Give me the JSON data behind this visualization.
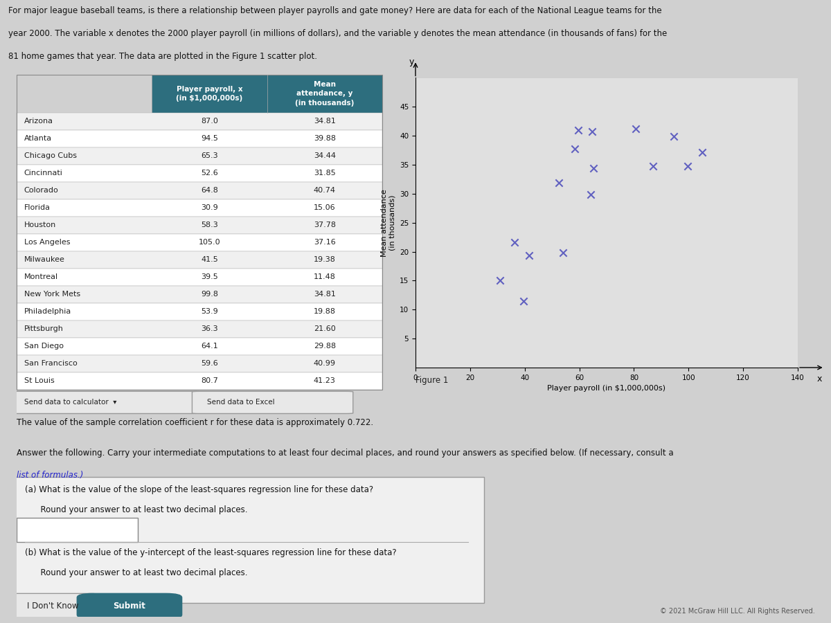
{
  "intro_line1": "For major league baseball teams, is there a relationship between player payrolls and gate money? Here are data for each of the National League teams for the",
  "intro_line2": "year 2000. The variable x denotes the 2000 player payroll (in millions of dollars), and the variable y denotes the mean attendance (in thousands of fans) for the",
  "intro_line3": "81 home games that year. The data are plotted in the Figure 1 scatter plot.",
  "teams": [
    "Arizona",
    "Atlanta",
    "Chicago Cubs",
    "Cincinnati",
    "Colorado",
    "Florida",
    "Houston",
    "Los Angeles",
    "Milwaukee",
    "Montreal",
    "New York Mets",
    "Philadelphia",
    "Pittsburgh",
    "San Diego",
    "San Francisco",
    "St Louis"
  ],
  "payroll": [
    87.0,
    94.5,
    65.3,
    52.6,
    64.8,
    30.9,
    58.3,
    105.0,
    41.5,
    39.5,
    99.8,
    53.9,
    36.3,
    64.1,
    59.6,
    80.7
  ],
  "attendance": [
    34.81,
    39.88,
    34.44,
    31.85,
    40.74,
    15.06,
    37.78,
    37.16,
    19.38,
    11.48,
    34.81,
    19.88,
    21.6,
    29.88,
    40.99,
    41.23
  ],
  "header_bg": "#2d6e7e",
  "header_text_color": "#ffffff",
  "table_bg_even": "#f0f0f0",
  "table_bg_odd": "#ffffff",
  "table_border": "#aaaaaa",
  "scatter_marker": "x",
  "scatter_color": "#6060c0",
  "scatter_marker_size": 55,
  "xlabel": "Player payroll (in $1,000,000s)",
  "ylabel": "Mean attendance\n(in thousands)",
  "xlim": [
    0,
    140
  ],
  "ylim": [
    0,
    50
  ],
  "xticks": [
    0,
    20,
    40,
    60,
    80,
    100,
    120,
    140
  ],
  "yticks": [
    5,
    10,
    15,
    20,
    25,
    30,
    35,
    40,
    45
  ],
  "figure_label": "Figure 1",
  "corr_text": "The value of the sample correlation coefficient r for these data is approximately 0.722.",
  "answer_line1": "Answer the following. Carry your intermediate computations to at least four decimal places, and round your answers as specified below. (If necessary, consult a",
  "answer_line2": "list of formulas.)",
  "qa1_line1": "(a) What is the value of the slope of the least-squares regression line for these data?",
  "qa1_line2": "      Round your answer to at least two decimal places.",
  "qa2_line1": "(b) What is the value of the y-intercept of the least-squares regression line for these data?",
  "qa2_line2": "      Round your answer to at least two decimal places.",
  "btn_calculator": "Send data to calculator",
  "btn_excel": "Send data to Excel",
  "btn_submit": "Submit",
  "btn_idk": "I Don't Know",
  "footer_text": "© 2021 McGraw Hill LLC. All Rights Reserved.",
  "bg_color": "#d0d0d0"
}
